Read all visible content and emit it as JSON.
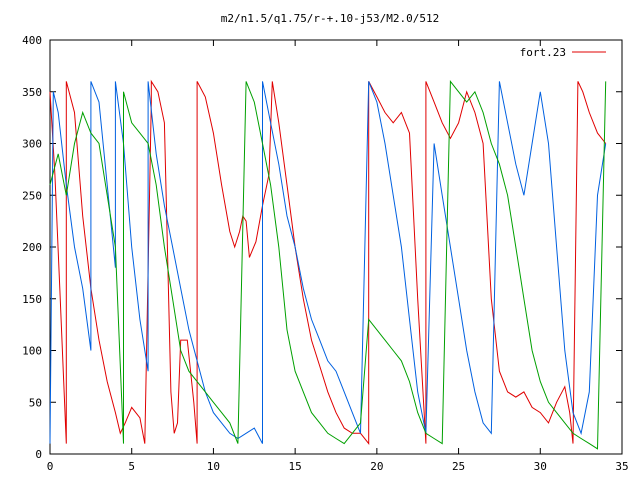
{
  "chart_data": {
    "type": "line",
    "title": "m2/n1.5/q1.75/r-+.10-j53/M2.0/512",
    "xlabel": "",
    "ylabel": "",
    "xlim": [
      0,
      35
    ],
    "ylim": [
      0,
      400
    ],
    "x_ticks": [
      0,
      5,
      10,
      15,
      20,
      25,
      30,
      35
    ],
    "y_ticks": [
      0,
      50,
      100,
      150,
      200,
      250,
      300,
      350,
      400
    ],
    "x_tick_labels": [
      "0",
      "5",
      "10",
      "15",
      "20",
      "25",
      "30",
      "35"
    ],
    "y_tick_labels": [
      "0",
      "50",
      "100",
      "150",
      "200",
      "250",
      "300",
      "350",
      "400"
    ],
    "grid": false,
    "legend_position": "top-right",
    "legend": [
      {
        "label": "fort.23",
        "color": "#e00000"
      }
    ],
    "series": [
      {
        "name": "fort.23",
        "color": "#e00000",
        "x": [
          0,
          0.3,
          0.6,
          1.0,
          1.0,
          1.5,
          2.0,
          2.5,
          3.0,
          3.5,
          4.0,
          4.3,
          4.6,
          5.0,
          5.5,
          5.8,
          6.2,
          6.2,
          6.6,
          7.0,
          7.4,
          7.6,
          7.8,
          8.0,
          8.4,
          8.8,
          9.0,
          9.0,
          9.5,
          10.0,
          10.5,
          11.0,
          11.3,
          11.6,
          11.8,
          12.0,
          12.2,
          12.6,
          13.0,
          13.4,
          13.6,
          14.0,
          14.5,
          15.0,
          15.5,
          16.0,
          16.5,
          17.0,
          17.5,
          18.0,
          18.5,
          19.0,
          19.5,
          19.5,
          20.0,
          20.5,
          21.0,
          21.5,
          22.0,
          22.5,
          23.0,
          23.0,
          23.5,
          24.0,
          24.5,
          25.0,
          25.5,
          26.0,
          26.5,
          27.0,
          27.5,
          28.0,
          28.5,
          29.0,
          29.5,
          30.0,
          30.5,
          31.0,
          31.5,
          31.8,
          32.0,
          32.3,
          32.6,
          33.0,
          33.5,
          34.0
        ],
        "y": [
          350,
          270,
          160,
          10,
          360,
          330,
          230,
          160,
          110,
          70,
          40,
          20,
          30,
          45,
          35,
          10,
          340,
          360,
          350,
          320,
          60,
          20,
          30,
          110,
          110,
          50,
          10,
          360,
          345,
          310,
          260,
          215,
          200,
          215,
          230,
          225,
          190,
          205,
          240,
          270,
          360,
          320,
          260,
          200,
          150,
          110,
          85,
          60,
          40,
          25,
          20,
          20,
          10,
          360,
          345,
          330,
          320,
          330,
          310,
          150,
          10,
          360,
          340,
          320,
          305,
          320,
          350,
          330,
          300,
          150,
          80,
          60,
          55,
          60,
          45,
          40,
          30,
          50,
          65,
          40,
          10,
          360,
          350,
          330,
          310,
          300
        ]
      },
      {
        "name": "",
        "color": "#0060e0",
        "x": [
          0,
          0.2,
          0.5,
          1.0,
          1.5,
          2.0,
          2.5,
          2.5,
          3.0,
          3.5,
          4.0,
          4.0,
          4.5,
          5.0,
          5.5,
          6.0,
          6.0,
          6.5,
          7.0,
          7.5,
          8.0,
          8.5,
          9.0,
          9.5,
          10.0,
          10.5,
          11.0,
          11.5,
          12.0,
          12.5,
          13.0,
          13.0,
          13.5,
          14.0,
          14.5,
          15.0,
          15.5,
          16.0,
          16.5,
          17.0,
          17.5,
          18.0,
          18.5,
          19.0,
          19.5,
          20.0,
          20.5,
          21.0,
          21.5,
          22.0,
          22.5,
          23.0,
          23.5,
          24.0,
          24.5,
          25.0,
          25.5,
          26.0,
          26.5,
          27.0,
          27.5,
          28.0,
          28.5,
          29.0,
          29.5,
          30.0,
          30.5,
          31.0,
          31.5,
          32.0,
          32.5,
          33.0,
          33.5,
          34.0
        ],
        "y": [
          10,
          350,
          330,
          260,
          200,
          160,
          100,
          360,
          340,
          260,
          180,
          360,
          300,
          200,
          130,
          80,
          360,
          290,
          240,
          200,
          160,
          120,
          90,
          60,
          40,
          30,
          20,
          15,
          20,
          25,
          10,
          360,
          320,
          280,
          230,
          200,
          160,
          130,
          110,
          90,
          80,
          60,
          40,
          20,
          360,
          340,
          300,
          250,
          200,
          130,
          60,
          20,
          300,
          250,
          200,
          150,
          100,
          60,
          30,
          20,
          360,
          320,
          280,
          250,
          300,
          350,
          300,
          200,
          100,
          40,
          20,
          60,
          250,
          300
        ]
      },
      {
        "name": "",
        "color": "#00a000",
        "x": [
          0,
          0.5,
          1.0,
          1.5,
          2.0,
          2.5,
          3.0,
          3.5,
          4.0,
          4.5,
          4.5,
          5.0,
          5.5,
          6.0,
          6.5,
          7.0,
          7.5,
          8.0,
          8.5,
          9.0,
          9.5,
          10.0,
          10.5,
          11.0,
          11.5,
          12.0,
          12.5,
          13.0,
          13.5,
          14.0,
          14.5,
          15.0,
          15.5,
          16.0,
          16.5,
          17.0,
          17.5,
          18.0,
          18.5,
          19.0,
          19.5,
          20.0,
          20.5,
          21.0,
          21.5,
          22.0,
          22.5,
          23.0,
          23.5,
          24.0,
          24.5,
          25.0,
          25.5,
          26.0,
          26.5,
          27.0,
          27.5,
          28.0,
          28.5,
          29.0,
          29.5,
          30.0,
          30.5,
          31.0,
          31.5,
          32.0,
          32.5,
          33.0,
          33.5,
          34.0
        ],
        "y": [
          260,
          290,
          250,
          300,
          330,
          310,
          300,
          250,
          200,
          10,
          350,
          320,
          310,
          300,
          260,
          200,
          150,
          100,
          80,
          70,
          60,
          50,
          40,
          30,
          10,
          360,
          340,
          300,
          260,
          200,
          120,
          80,
          60,
          40,
          30,
          20,
          15,
          10,
          20,
          30,
          130,
          120,
          110,
          100,
          90,
          70,
          40,
          20,
          15,
          10,
          360,
          350,
          340,
          350,
          330,
          300,
          280,
          250,
          200,
          150,
          100,
          70,
          50,
          40,
          30,
          20,
          15,
          10,
          5,
          360
        ]
      }
    ]
  }
}
